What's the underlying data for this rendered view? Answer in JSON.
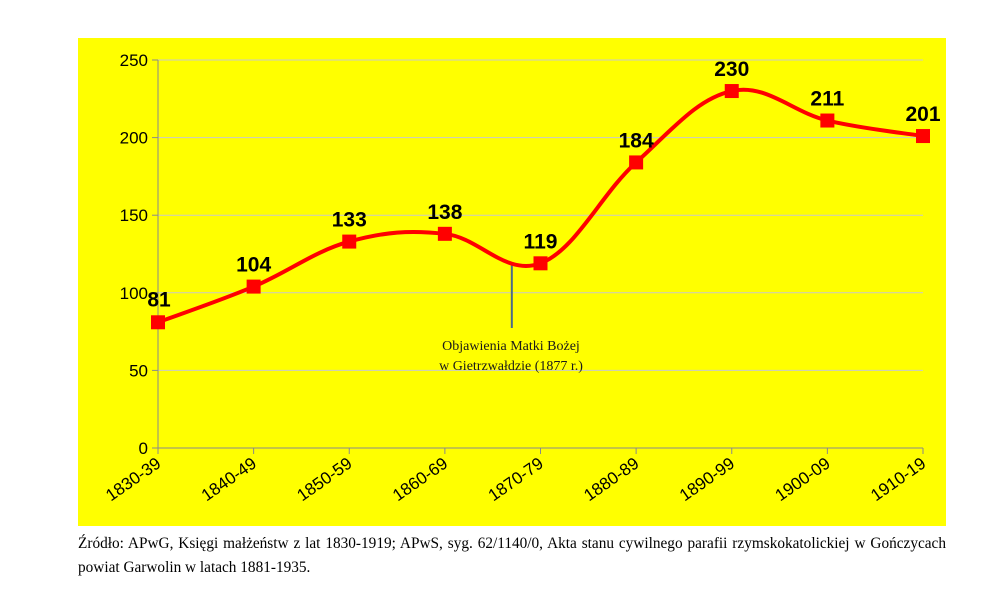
{
  "chart_data": {
    "type": "line",
    "categories": [
      "1830-39",
      "1840-49",
      "1850-59",
      "1860-69",
      "1870-79",
      "1880-89",
      "1890-99",
      "1900-09",
      "1910-19"
    ],
    "values": [
      81,
      104,
      133,
      138,
      119,
      184,
      230,
      211,
      201
    ],
    "ylim": [
      0,
      250
    ],
    "yticks": [
      0,
      50,
      100,
      150,
      200,
      250
    ],
    "grid": true,
    "smooth": true,
    "colors": {
      "background": "#ffff00",
      "line": "#ff0000",
      "marker": "#ff0000",
      "grid": "#c9c9c9",
      "annotation": "#4a6b8a"
    },
    "annotation": {
      "lines": [
        "Objawienia Matki Bożej",
        "w Gietrzwałdzie (1877 r.)"
      ]
    }
  },
  "source": "Źródło: APwG, Księgi małżeństw z lat 1830-1919; APwS, syg. 62/1140/0, Akta stanu cywilnego parafii rzymskokatolickiej w Gończycach powiat Garwolin w latach 1881-1935."
}
